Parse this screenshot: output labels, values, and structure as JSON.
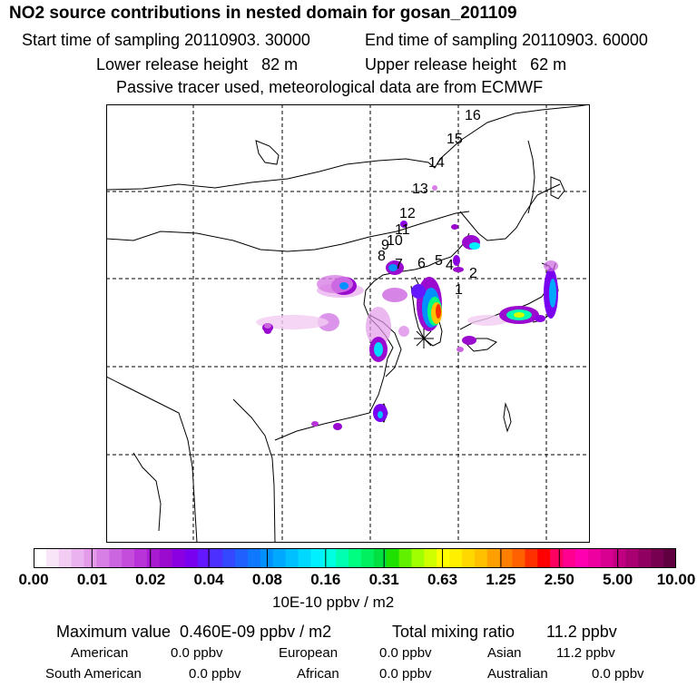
{
  "header": {
    "title": "NO2 source contributions in nested domain for gosan_201109",
    "start_time": "Start time of sampling 20110903. 30000",
    "end_time": "End time of sampling 20110903. 60000",
    "lower_height": "Lower release height   82 m",
    "upper_height": "Upper release height   62 m",
    "tracer_note": "Passive tracer used, meteorological data are from ECMWF"
  },
  "trajectory_labels": [
    "1",
    "2",
    "4",
    "5",
    "6",
    "7",
    "8",
    "9",
    "10",
    "11",
    "12",
    "13",
    "14",
    "15",
    "16"
  ],
  "colorbar": {
    "ticks": [
      "0.00",
      "0.01",
      "0.02",
      "0.04",
      "0.08",
      "0.16",
      "0.31",
      "0.63",
      "1.25",
      "2.50",
      "5.00",
      "10.00"
    ],
    "unit": "10E-10 ppbv / m2",
    "colors": [
      "#ffffff",
      "#f8e6f8",
      "#f2ccf2",
      "#eab3ef",
      "#e39ae9",
      "#d87fe5",
      "#cc66e0",
      "#c44ddc",
      "#b833d8",
      "#a91ad3",
      "#9a0acf",
      "#8b00e0",
      "#7a00f0",
      "#6418ff",
      "#4c30ff",
      "#3448ff",
      "#2060ff",
      "#1078ff",
      "#0090ff",
      "#00a8ff",
      "#00c0ff",
      "#00d8ff",
      "#00f0ff",
      "#00ffe0",
      "#00ffb0",
      "#00ff80",
      "#00f060",
      "#00e040",
      "#20e000",
      "#60f000",
      "#a0ff00",
      "#d0ff00",
      "#ffff00",
      "#fff000",
      "#ffd800",
      "#ffc000",
      "#ffa000",
      "#ff8000",
      "#ff6000",
      "#ff3000",
      "#ff0000",
      "#ff0060",
      "#ff0090",
      "#ff00b0",
      "#ee00a0",
      "#d80090",
      "#c00080",
      "#a80070",
      "#900060",
      "#780050",
      "#600040"
    ]
  },
  "footer": {
    "max_value": "Maximum value  0.460E-09 ppbv / m2",
    "total_ratio": "Total mixing ratio       11.2 ppbv",
    "regions": [
      {
        "name": "American",
        "value": "0.0 ppbv"
      },
      {
        "name": "European",
        "value": "0.0 ppbv"
      },
      {
        "name": "Asian",
        "value": "11.2 ppbv"
      },
      {
        "name": "South American",
        "value": "0.0 ppbv"
      },
      {
        "name": "African",
        "value": "0.0 ppbv"
      },
      {
        "name": "Australian",
        "value": "0.0 ppbv"
      }
    ]
  }
}
